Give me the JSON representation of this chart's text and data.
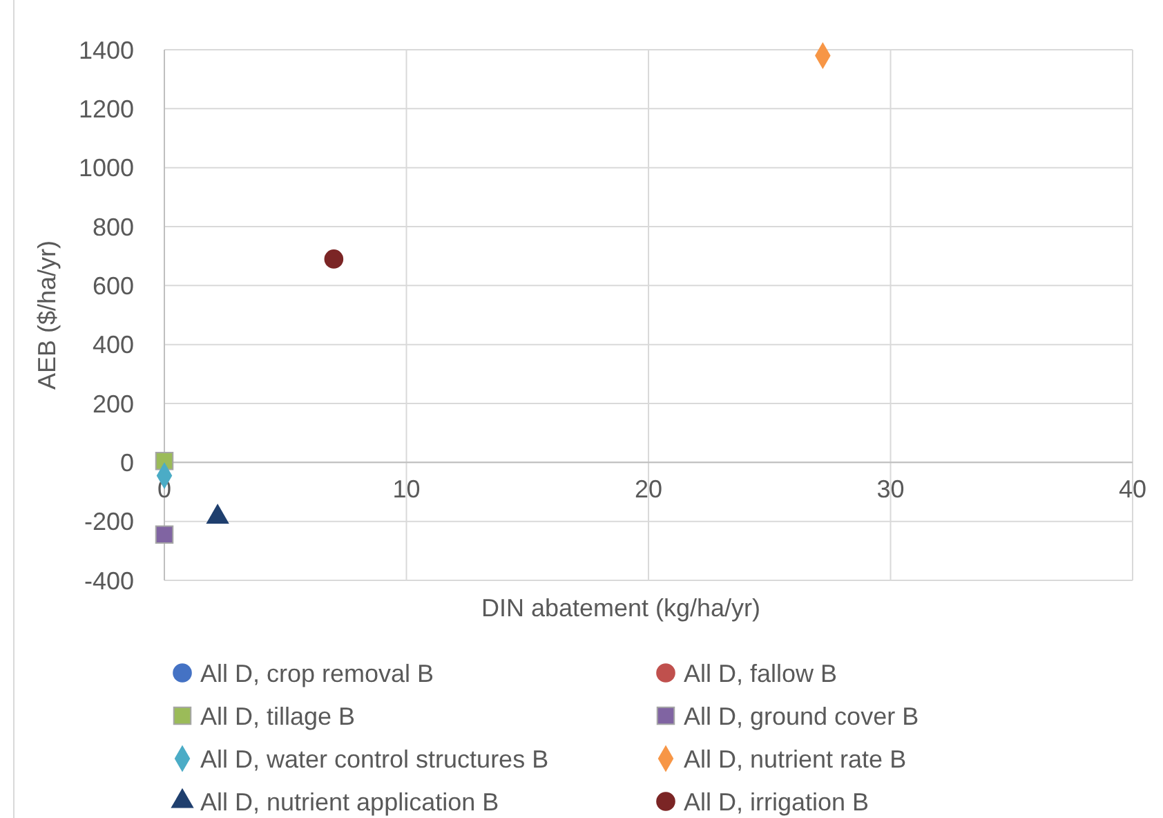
{
  "chart_data": {
    "type": "scatter",
    "xlabel": "DIN abatement (kg/ha/yr)",
    "ylabel": "AEB ($/ha/yr)",
    "xlim": [
      0,
      40
    ],
    "xticks": [
      0,
      10,
      20,
      30,
      40
    ],
    "ylim": [
      -400,
      1400
    ],
    "yticks": [
      -400,
      -200,
      0,
      200,
      400,
      600,
      800,
      1000,
      1200,
      1400
    ],
    "grid": true,
    "legend": "bottom",
    "series": [
      {
        "name": "All D, crop removal B",
        "color": "#4472c4",
        "marker": "circle",
        "x": [
          null
        ],
        "values": [
          null
        ]
      },
      {
        "name": "All D, fallow B",
        "color": "#c0504d",
        "marker": "circle",
        "x": [
          null
        ],
        "values": [
          null
        ]
      },
      {
        "name": "All D, tillage B",
        "color": "#9bbb59",
        "marker": "square",
        "x": [
          0
        ],
        "values": [
          5
        ]
      },
      {
        "name": "All D, ground cover B",
        "color": "#8064a2",
        "marker": "square",
        "x": [
          0
        ],
        "values": [
          -245
        ]
      },
      {
        "name": "All D, water control structures B",
        "color": "#4bacc6",
        "marker": "diamond",
        "x": [
          0
        ],
        "values": [
          -45
        ]
      },
      {
        "name": "All D, nutrient rate B",
        "color": "#f79646",
        "marker": "diamond",
        "x": [
          27.2
        ],
        "values": [
          1380
        ]
      },
      {
        "name": "All D, nutrient application B",
        "color": "#1f3f6e",
        "marker": "triangle",
        "x": [
          2.2
        ],
        "values": [
          -185
        ]
      },
      {
        "name": "All D, irrigation B",
        "color": "#7b2525",
        "marker": "circle",
        "x": [
          7
        ],
        "values": [
          690
        ]
      }
    ]
  }
}
